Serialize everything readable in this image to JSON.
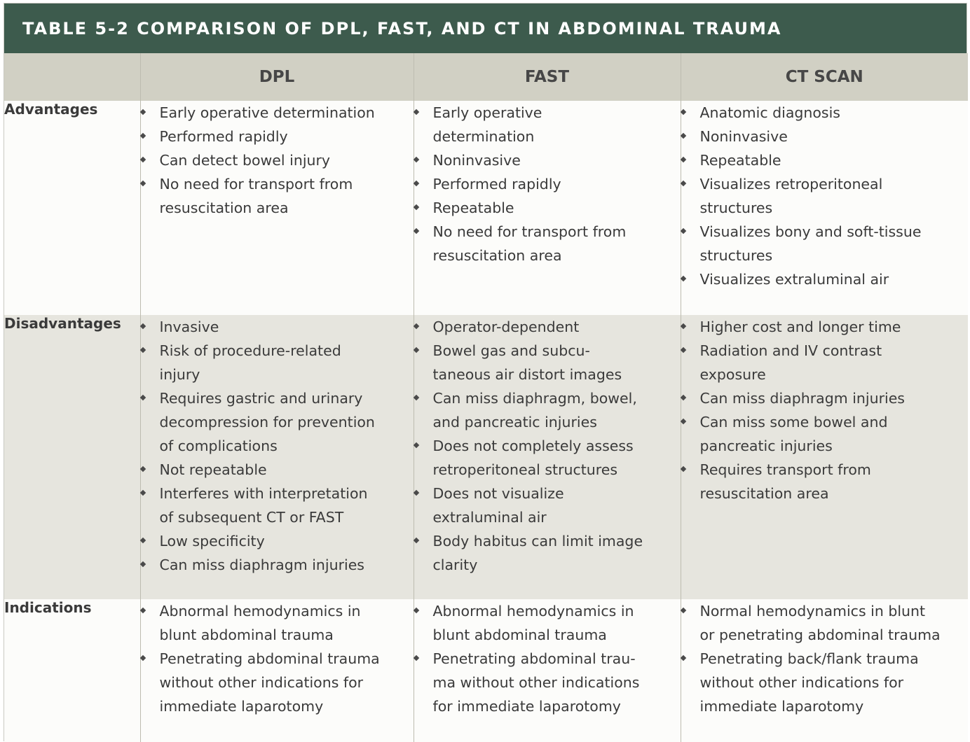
{
  "title": "TABLE 5-2 COMPARISON OF DPL, FAST, AND CT IN ABDOMINAL TRAUMA",
  "columns": [
    "",
    "DPL",
    "FAST",
    "CT SCAN"
  ],
  "rows": [
    {
      "label": "Advantages",
      "dpl": [
        [
          "Early operative determination"
        ],
        [
          "Performed rapidly"
        ],
        [
          "Can detect bowel injury"
        ],
        [
          "No need for transport from",
          "resuscitation area"
        ]
      ],
      "fast": [
        [
          "Early operative",
          "determination"
        ],
        [
          "Noninvasive"
        ],
        [
          "Performed rapidly"
        ],
        [
          "Repeatable"
        ],
        [
          "No need for transport from",
          "resuscitation area"
        ]
      ],
      "ct": [
        [
          "Anatomic diagnosis"
        ],
        [
          "Noninvasive"
        ],
        [
          "Repeatable"
        ],
        [
          "Visualizes retroperitoneal",
          "structures"
        ],
        [
          "Visualizes bony and soft-tissue",
          "structures"
        ],
        [
          "Visualizes extraluminal air"
        ]
      ]
    },
    {
      "label": "Disadvantages",
      "dpl": [
        [
          "Invasive"
        ],
        [
          "Risk of procedure-related",
          "injury"
        ],
        [
          "Requires gastric and urinary",
          "decompression for prevention",
          "of complications"
        ],
        [
          "Not repeatable"
        ],
        [
          "Interferes with interpretation",
          "of subsequent CT or FAST"
        ],
        [
          "Low specificity"
        ],
        [
          "Can miss diaphragm injuries"
        ]
      ],
      "fast": [
        [
          "Operator-dependent"
        ],
        [
          "Bowel gas and subcu-",
          "taneous air distort images"
        ],
        [
          "Can miss diaphragm, bowel,",
          "and pancreatic injuries"
        ],
        [
          "Does not completely assess",
          "retroperitoneal structures"
        ],
        [
          "Does not visualize",
          "extraluminal air"
        ],
        [
          "Body habitus can limit image",
          "clarity"
        ]
      ],
      "ct": [
        [
          "Higher cost and longer time"
        ],
        [
          "Radiation and IV contrast",
          "exposure"
        ],
        [
          "Can miss diaphragm injuries"
        ],
        [
          "Can miss some bowel and",
          "pancreatic injuries"
        ],
        [
          "Requires transport from",
          "resuscitation area"
        ]
      ]
    },
    {
      "label": "Indications",
      "dpl": [
        [
          "Abnormal hemodynamics in",
          "blunt abdominal trauma"
        ],
        [
          "Penetrating abdominal trauma",
          "without other indications for",
          "immediate laparotomy"
        ]
      ],
      "fast": [
        [
          "Abnormal hemodynamics in",
          "blunt abdominal trauma"
        ],
        [
          "Penetrating abdominal trau-",
          "ma without other indications",
          "for immediate laparotomy"
        ]
      ],
      "ct": [
        [
          "Normal hemodynamics in blunt",
          "or penetrating abdominal trauma"
        ],
        [
          "Penetrating back/flank trauma",
          "without other indications for",
          "immediate laparotomy"
        ]
      ]
    }
  ]
}
